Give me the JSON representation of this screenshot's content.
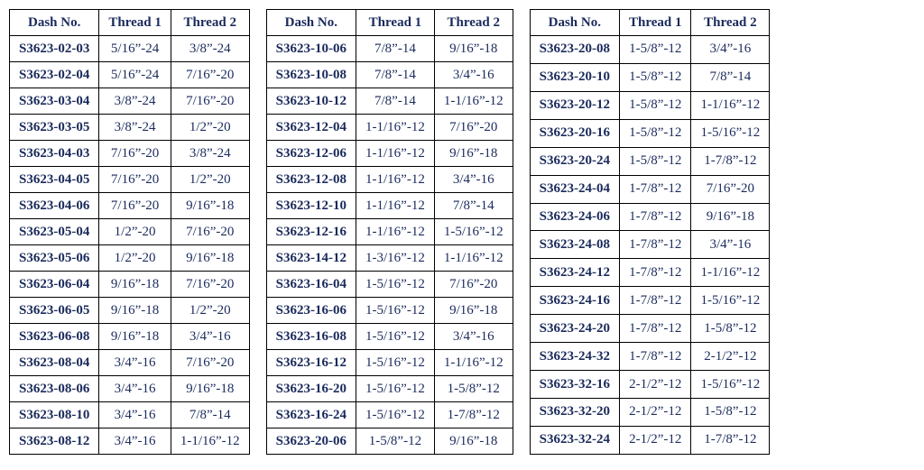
{
  "columns": [
    "Dash No.",
    "Thread 1",
    "Thread 2"
  ],
  "text_color": "#1a2a5c",
  "border_color": "#000000",
  "background_color": "#ffffff",
  "font_family": "Times New Roman",
  "header_fontsize": 15,
  "cell_fontsize": 15,
  "tables": [
    {
      "rows": [
        [
          "S3623-02-03",
          "5/16”-24",
          "3/8”-24"
        ],
        [
          "S3623-02-04",
          "5/16”-24",
          "7/16”-20"
        ],
        [
          "S3623-03-04",
          "3/8”-24",
          "7/16”-20"
        ],
        [
          "S3623-03-05",
          "3/8”-24",
          "1/2”-20"
        ],
        [
          "S3623-04-03",
          "7/16”-20",
          "3/8”-24"
        ],
        [
          "S3623-04-05",
          "7/16”-20",
          "1/2”-20"
        ],
        [
          "S3623-04-06",
          "7/16”-20",
          "9/16”-18"
        ],
        [
          "S3623-05-04",
          "1/2”-20",
          "7/16”-20"
        ],
        [
          "S3623-05-06",
          "1/2”-20",
          "9/16”-18"
        ],
        [
          "S3623-06-04",
          "9/16”-18",
          "7/16”-20"
        ],
        [
          "S3623-06-05",
          "9/16”-18",
          "1/2”-20"
        ],
        [
          "S3623-06-08",
          "9/16”-18",
          "3/4”-16"
        ],
        [
          "S3623-08-04",
          "3/4”-16",
          "7/16”-20"
        ],
        [
          "S3623-08-06",
          "3/4”-16",
          "9/16”-18"
        ],
        [
          "S3623-08-10",
          "3/4”-16",
          "7/8”-14"
        ],
        [
          "S3623-08-12",
          "3/4”-16",
          "1-1/16”-12"
        ]
      ]
    },
    {
      "rows": [
        [
          "S3623-10-06",
          "7/8”-14",
          "9/16”-18"
        ],
        [
          "S3623-10-08",
          "7/8”-14",
          "3/4”-16"
        ],
        [
          "S3623-10-12",
          "7/8”-14",
          "1-1/16”-12"
        ],
        [
          "S3623-12-04",
          "1-1/16”-12",
          "7/16”-20"
        ],
        [
          "S3623-12-06",
          "1-1/16”-12",
          "9/16”-18"
        ],
        [
          "S3623-12-08",
          "1-1/16”-12",
          "3/4”-16"
        ],
        [
          "S3623-12-10",
          "1-1/16”-12",
          "7/8”-14"
        ],
        [
          "S3623-12-16",
          "1-1/16”-12",
          "1-5/16”-12"
        ],
        [
          "S3623-14-12",
          "1-3/16”-12",
          "1-1/16”-12"
        ],
        [
          "S3623-16-04",
          "1-5/16”-12",
          "7/16”-20"
        ],
        [
          "S3623-16-06",
          "1-5/16”-12",
          "9/16”-18"
        ],
        [
          "S3623-16-08",
          "1-5/16”-12",
          "3/4”-16"
        ],
        [
          "S3623-16-12",
          "1-5/16”-12",
          "1-1/16”-12"
        ],
        [
          "S3623-16-20",
          "1-5/16”-12",
          "1-5/8”-12"
        ],
        [
          "S3623-16-24",
          "1-5/16”-12",
          "1-7/8”-12"
        ],
        [
          "S3623-20-06",
          "1-5/8”-12",
          "9/16”-18"
        ]
      ]
    },
    {
      "rows": [
        [
          "S3623-20-08",
          "1-5/8”-12",
          "3/4”-16"
        ],
        [
          "S3623-20-10",
          "1-5/8”-12",
          "7/8”-14"
        ],
        [
          "S3623-20-12",
          "1-5/8”-12",
          "1-1/16”-12"
        ],
        [
          "S3623-20-16",
          "1-5/8”-12",
          "1-5/16”-12"
        ],
        [
          "S3623-20-24",
          "1-5/8”-12",
          "1-7/8”-12"
        ],
        [
          "S3623-24-04",
          "1-7/8”-12",
          "7/16”-20"
        ],
        [
          "S3623-24-06",
          "1-7/8”-12",
          "9/16”-18"
        ],
        [
          "S3623-24-08",
          "1-7/8”-12",
          "3/4”-16"
        ],
        [
          "S3623-24-12",
          "1-7/8”-12",
          "1-1/16”-12"
        ],
        [
          "S3623-24-16",
          "1-7/8”-12",
          "1-5/16”-12"
        ],
        [
          "S3623-24-20",
          "1-7/8”-12",
          "1-5/8”-12"
        ],
        [
          "S3623-24-32",
          "1-7/8”-12",
          "2-1/2”-12"
        ],
        [
          "S3623-32-16",
          "2-1/2”-12",
          "1-5/16”-12"
        ],
        [
          "S3623-32-20",
          "2-1/2”-12",
          "1-5/8”-12"
        ],
        [
          "S3623-32-24",
          "2-1/2”-12",
          "1-7/8”-12"
        ]
      ]
    }
  ]
}
